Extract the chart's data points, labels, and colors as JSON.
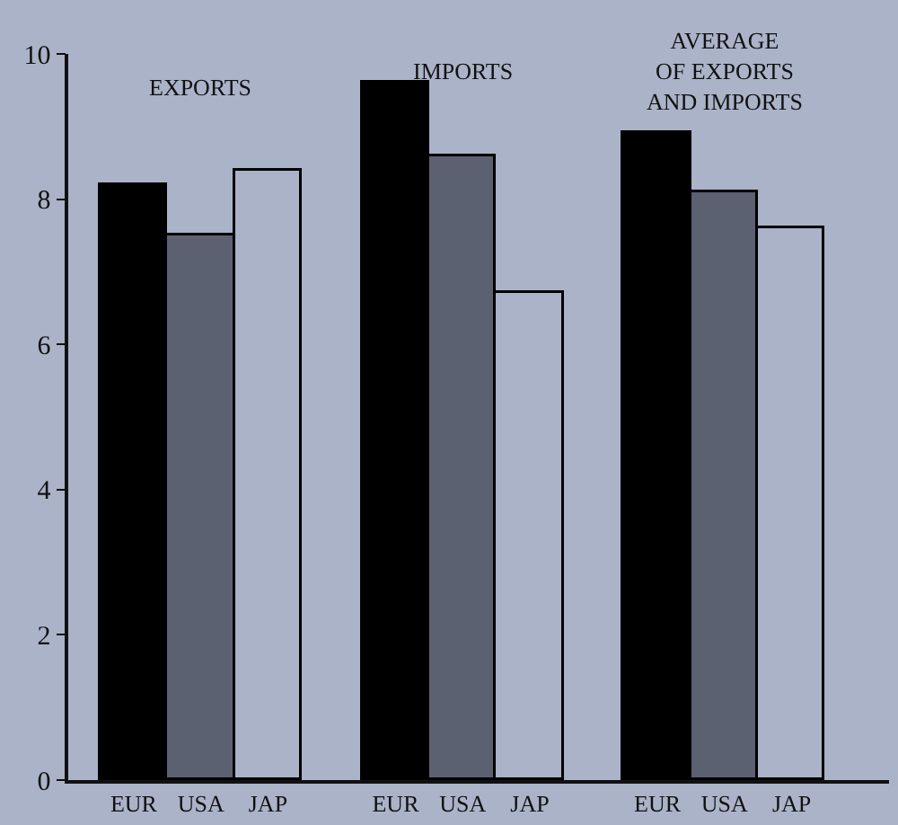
{
  "chart_data": {
    "type": "bar",
    "categories": [
      "EUR",
      "USA",
      "JAP",
      "EUR",
      "USA",
      "JAP",
      "EUR",
      "USA",
      "JAP"
    ],
    "values": [
      8.2,
      7.5,
      8.4,
      9.6,
      8.6,
      6.7,
      8.9,
      8.1,
      7.6
    ],
    "colors": [
      "#000000",
      "#5c6172",
      "#aab3c8",
      "#000000",
      "#5c6172",
      "#aab3c8",
      "#000000",
      "#5c6172",
      "#aab3c8"
    ],
    "annotations": [
      "EXPORTS",
      "IMPORTS",
      "AVERAGE\nOF EXPORTS\nAND IMPORTS"
    ],
    "ylim": [
      0,
      10
    ],
    "yticks": [
      0,
      2,
      4,
      6,
      8,
      10
    ],
    "grid": false,
    "legend": false
  }
}
